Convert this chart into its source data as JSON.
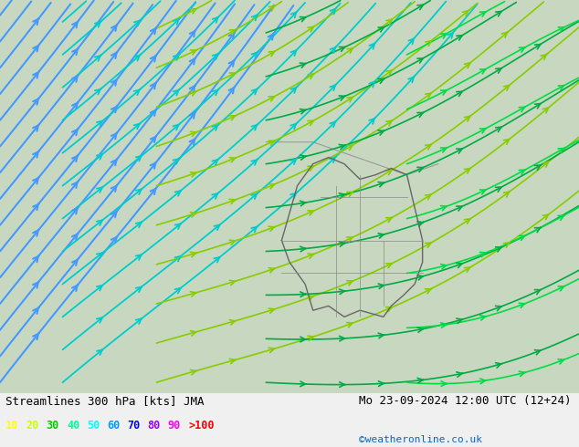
{
  "title_left": "Streamlines 300 hPa [kts] JMA",
  "title_right": "Mo 23-09-2024 12:00 UTC (12+24)",
  "credit": "©weatheronline.co.uk",
  "legend_values": [
    "10",
    "20",
    "30",
    "40",
    "50",
    "60",
    "70",
    "80",
    "90",
    ">100"
  ],
  "legend_colors": [
    "#ffff00",
    "#ccff00",
    "#00cc00",
    "#00ff99",
    "#00ffff",
    "#0099ff",
    "#0000ff",
    "#9900ff",
    "#ff00ff",
    "#ff0000"
  ],
  "bg_color": "#e8f4e8",
  "land_color": "#d4e8d4",
  "border_color": "#888888",
  "streamline_colors": {
    "low": "#00cc00",
    "medium": "#00cccc",
    "high": "#0066ff"
  },
  "figsize": [
    6.34,
    4.9
  ],
  "dpi": 100
}
